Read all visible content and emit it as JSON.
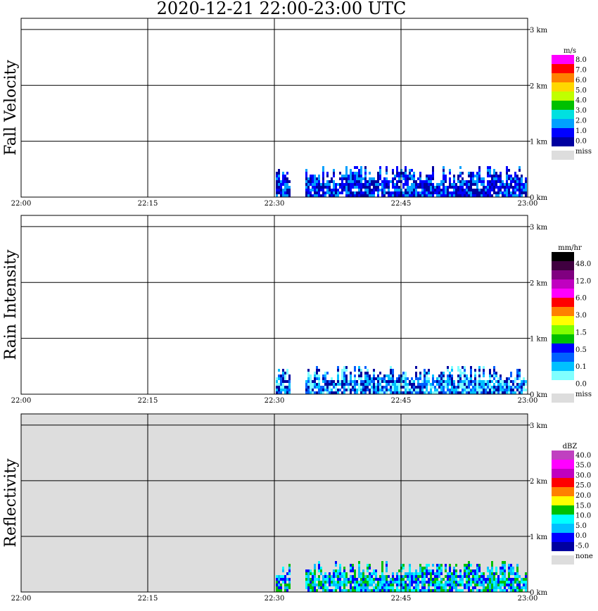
{
  "figure": {
    "title": "2020-12-21   22:00-23:00 UTC"
  },
  "chart_data": [
    {
      "type": "heatmap",
      "panel_label": "Fall Velocity",
      "x_ticks": [
        "22:00",
        "22:15",
        "22:30",
        "22:45",
        "23:00"
      ],
      "y_ticks": [
        "0 km",
        "1 km",
        "2 km",
        "3 km"
      ],
      "xlim": [
        "22:00",
        "23:00"
      ],
      "ylim_km": [
        0,
        3.2
      ],
      "colorbar": {
        "unit": "m/s",
        "labels": [
          "8.0",
          "7.0",
          "6.0",
          "5.0",
          "4.0",
          "3.0",
          "2.0",
          "1.0",
          "0.0"
        ],
        "colors": [
          "#ff00ff",
          "#ff0000",
          "#ff8000",
          "#ffd700",
          "#c0ff00",
          "#00c000",
          "#00e0e0",
          "#00a0ff",
          "#0000ff",
          "#0000a0"
        ],
        "missing_label": "miss",
        "missing_color": "#dddddd"
      },
      "background": "#ffffff",
      "echo_summary": {
        "start": "22:30",
        "end": "23:00",
        "top_km": 0.6,
        "dominant_colors": [
          "#0000ff",
          "#00a0ff",
          "#0000a0"
        ]
      }
    },
    {
      "type": "heatmap",
      "panel_label": "Rain Intensity",
      "x_ticks": [
        "22:00",
        "22:15",
        "22:30",
        "22:45",
        "23:00"
      ],
      "y_ticks": [
        "0 km",
        "1 km",
        "2 km",
        "3 km"
      ],
      "xlim": [
        "22:00",
        "23:00"
      ],
      "ylim_km": [
        0,
        3.2
      ],
      "colorbar": {
        "unit": "mm/hr",
        "labels": [
          "48.0",
          "12.0",
          "6.0",
          "3.0",
          "1.5",
          "0.5",
          "0.1",
          "0.0"
        ],
        "colors": [
          "#000000",
          "#400040",
          "#800080",
          "#c000c0",
          "#ff00ff",
          "#ff0000",
          "#ff8000",
          "#ffff00",
          "#80ff00",
          "#00c000",
          "#0000ff",
          "#0060ff",
          "#00c0ff",
          "#80ffff",
          "#ffffff"
        ],
        "missing_label": "miss",
        "missing_color": "#dddddd"
      },
      "background": "#ffffff",
      "echo_summary": {
        "start": "22:30",
        "end": "23:00",
        "top_km": 0.55,
        "dominant_colors": [
          "#80ffff",
          "#00c0ff",
          "#0060ff",
          "#0000a0"
        ]
      }
    },
    {
      "type": "heatmap",
      "panel_label": "Reflectivity",
      "x_ticks": [
        "22:00",
        "22:15",
        "22:30",
        "22:45",
        "23:00"
      ],
      "y_ticks": [
        "0 km",
        "1 km",
        "2 km",
        "3 km"
      ],
      "xlim": [
        "22:00",
        "23:00"
      ],
      "ylim_km": [
        0,
        3.2
      ],
      "colorbar": {
        "unit": "dBZ",
        "labels": [
          "40.0",
          "35.0",
          "30.0",
          "25.0",
          "20.0",
          "15.0",
          "10.0",
          "5.0",
          "0.0",
          "-5.0"
        ],
        "colors": [
          "#c040c0",
          "#ff00ff",
          "#c000c0",
          "#ff0000",
          "#ff8000",
          "#ffff00",
          "#00c000",
          "#00ffff",
          "#00c0ff",
          "#0000ff",
          "#0000a0"
        ],
        "missing_label": "none",
        "missing_color": "#dddddd"
      },
      "background": "#dddddd",
      "echo_summary": {
        "start": "22:30",
        "end": "23:00",
        "top_km": 0.6,
        "dominant_colors": [
          "#00c0ff",
          "#00ffff",
          "#0000ff",
          "#00c000"
        ]
      }
    }
  ]
}
